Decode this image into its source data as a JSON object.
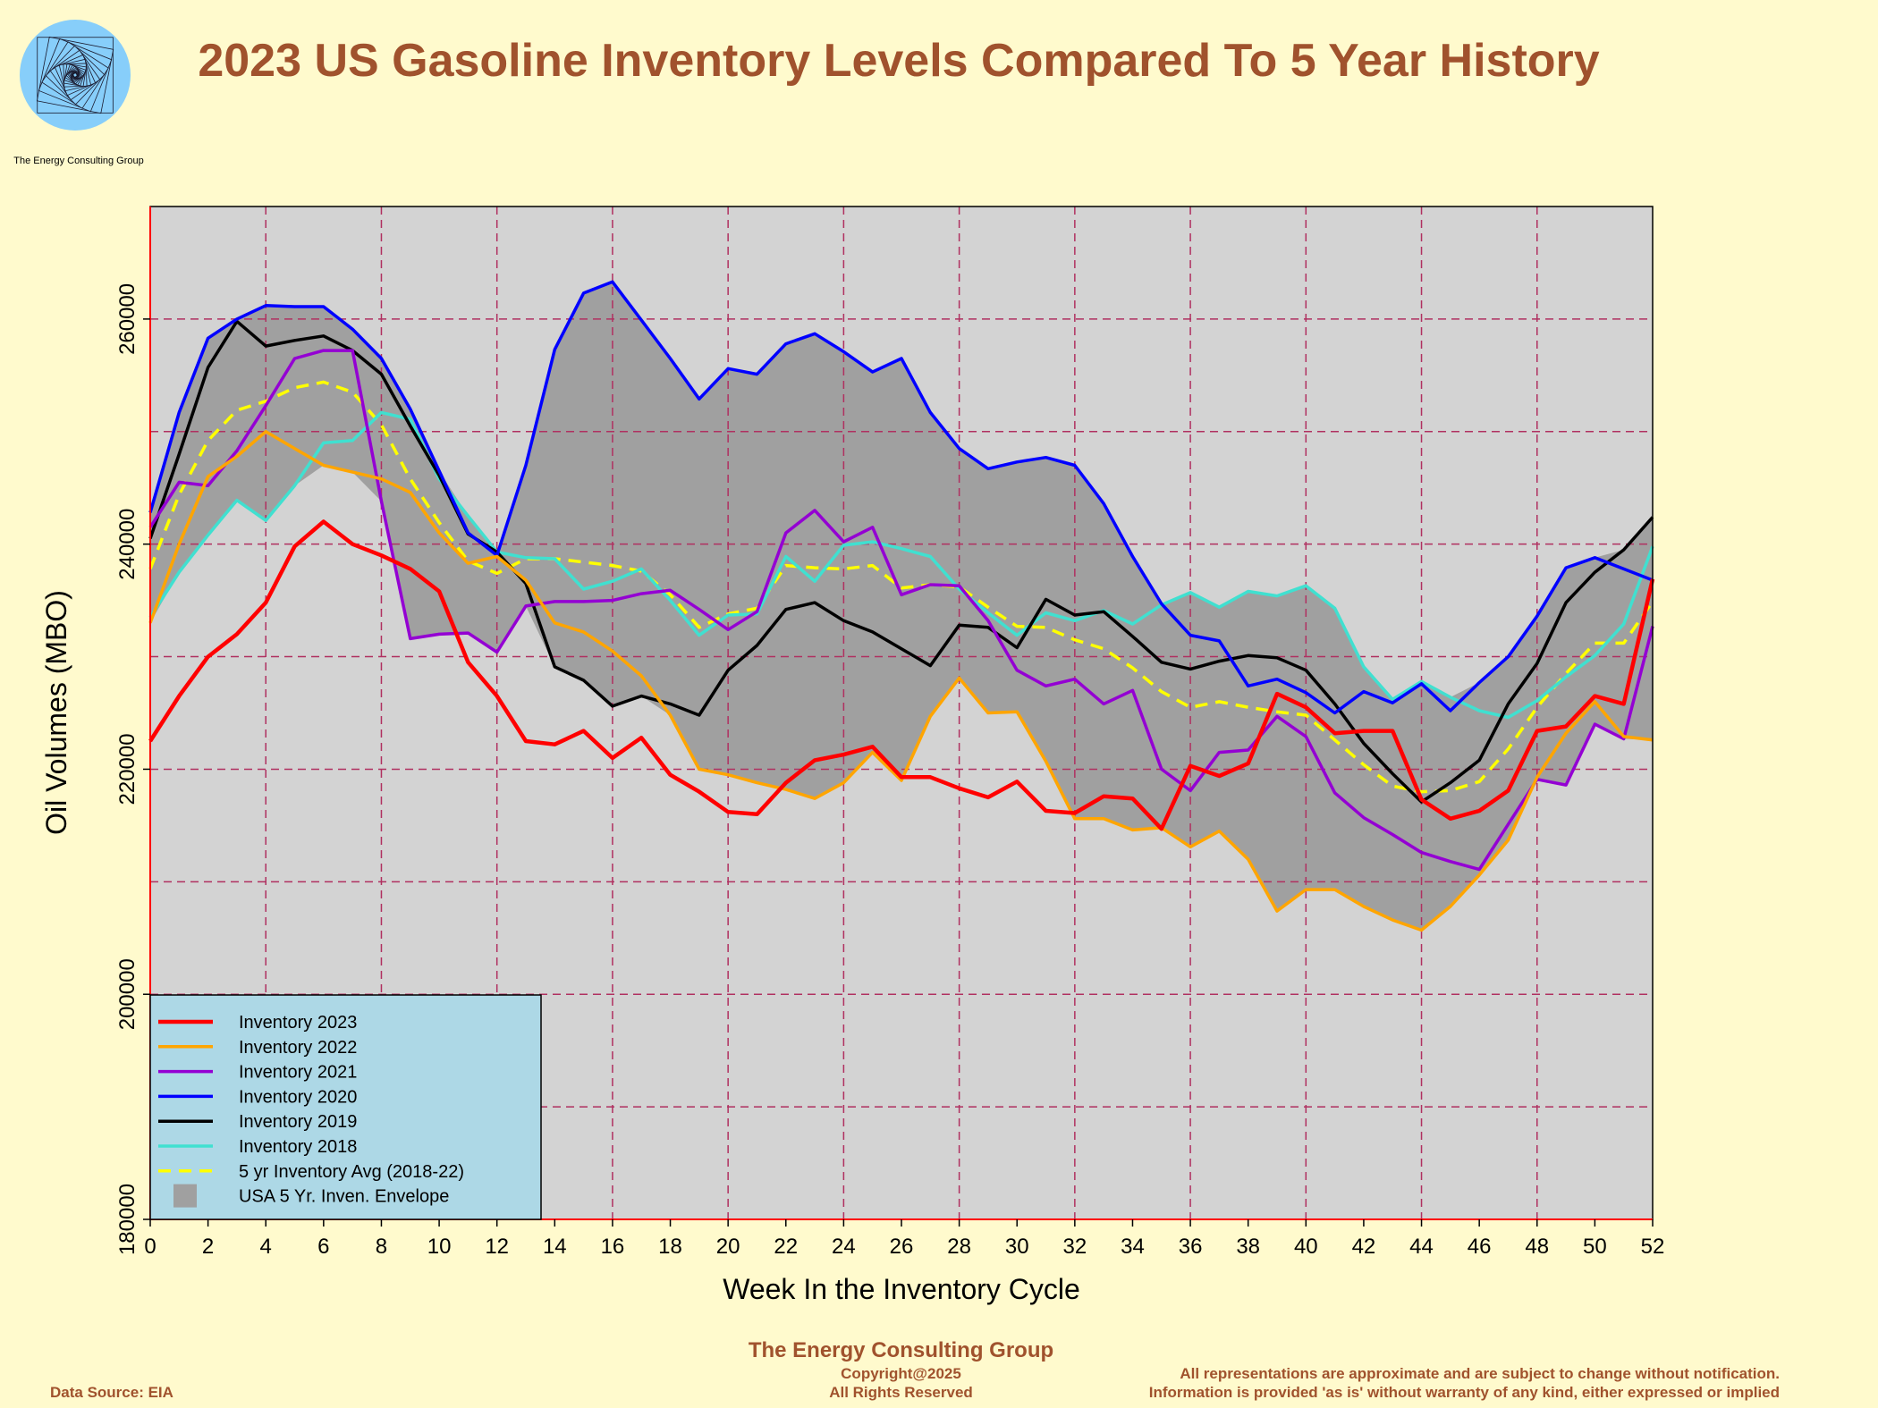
{
  "header": {
    "title": "2023 US Gasoline Inventory Levels Compared To 5 Year History",
    "logo_caption": "The Energy Consulting Group"
  },
  "footer": {
    "organization": "The Energy Consulting Group",
    "copyright": "Copyright@2025",
    "rights": "All Rights Reserved",
    "source": "Data Source: EIA",
    "disclaimer_1": "All representations are approximate and are subject to change without notification.",
    "disclaimer_2": "Information is provided 'as is' without warranty of any kind, either expressed or implied"
  },
  "colors": {
    "page_background": "#fffacd",
    "plot_background": "#d3d3d3",
    "envelope": "#a0a0a0",
    "grid": "#b03060",
    "legend_background": "#add8e6",
    "title": "#a0522d",
    "axis_line": "#ff0000"
  },
  "chart_data": {
    "type": "line",
    "title": "2023 US Gasoline Inventory Levels Compared To 5 Year History",
    "xlabel": "Week In the Inventory Cycle",
    "ylabel": "Oil Volumes (MBO)",
    "xlim": [
      0,
      52
    ],
    "ylim": [
      180000,
      270000
    ],
    "x_ticks": [
      0,
      2,
      4,
      6,
      8,
      10,
      12,
      14,
      16,
      18,
      20,
      22,
      24,
      26,
      28,
      30,
      32,
      34,
      36,
      38,
      40,
      42,
      44,
      46,
      48,
      50,
      52
    ],
    "y_ticks": [
      180000,
      200000,
      220000,
      240000,
      260000
    ],
    "grid": true,
    "legend_position": "bottom-left",
    "x": [
      0,
      1,
      2,
      3,
      4,
      5,
      6,
      7,
      8,
      9,
      10,
      11,
      12,
      13,
      14,
      15,
      16,
      17,
      18,
      19,
      20,
      21,
      22,
      23,
      24,
      25,
      26,
      27,
      28,
      29,
      30,
      31,
      32,
      33,
      34,
      35,
      36,
      37,
      38,
      39,
      40,
      41,
      42,
      43,
      44,
      45,
      46,
      47,
      48,
      49,
      50,
      51,
      52
    ],
    "series": [
      {
        "name": "Inventory 2023",
        "color": "#ff0000",
        "width": 4.5,
        "dash": "",
        "values": [
          222500,
          226500,
          230000,
          232000,
          234800,
          239800,
          242000,
          240000,
          239000,
          237800,
          235800,
          229500,
          226500,
          222500,
          222200,
          223400,
          221000,
          222800,
          219500,
          218000,
          216200,
          216000,
          218800,
          220800,
          221300,
          222000,
          219300,
          219300,
          218300,
          217500,
          218900,
          216300,
          216100,
          217600,
          217400,
          214700,
          220300,
          219400,
          220500,
          226700,
          225500,
          223200,
          223400,
          223400,
          217300,
          215600,
          216300,
          218100,
          223400,
          223800,
          226500,
          225800,
          236900
        ]
      },
      {
        "name": "Inventory 2022",
        "color": "#ffa500",
        "width": 3.5,
        "dash": "",
        "values": [
          233000,
          240000,
          246000,
          247800,
          250000,
          248500,
          247000,
          246400,
          245800,
          244600,
          241000,
          238300,
          238900,
          236800,
          233000,
          232200,
          230500,
          228300,
          224800,
          220000,
          219500,
          218800,
          218200,
          217400,
          218800,
          221500,
          219000,
          224700,
          228100,
          225000,
          225100,
          220700,
          215600,
          215600,
          214600,
          214800,
          213100,
          214500,
          212000,
          207400,
          209300,
          209300,
          207800,
          206600,
          205700,
          207800,
          210600,
          213700,
          219300,
          223200,
          226000,
          222900,
          222600
        ]
      },
      {
        "name": "Inventory 2021",
        "color": "#9400d3",
        "width": 3.5,
        "dash": "",
        "values": [
          241500,
          245500,
          245200,
          248300,
          252300,
          256500,
          257200,
          257200,
          243800,
          231600,
          232000,
          232100,
          230400,
          234500,
          234900,
          234900,
          235000,
          235600,
          235900,
          234200,
          232400,
          234000,
          241000,
          243000,
          240200,
          241500,
          235500,
          236400,
          236300,
          233200,
          228800,
          227400,
          228000,
          225800,
          227000,
          220000,
          218100,
          221500,
          221700,
          224700,
          222900,
          217900,
          215700,
          214200,
          212600,
          211800,
          211100,
          215100,
          219100,
          218600,
          224000,
          222700,
          232700
        ]
      },
      {
        "name": "Inventory 2020",
        "color": "#0000ff",
        "width": 3.5,
        "dash": "",
        "values": [
          242800,
          251700,
          258300,
          260000,
          261200,
          261100,
          261100,
          259100,
          256500,
          252000,
          246500,
          241000,
          239000,
          247000,
          257300,
          262300,
          263300,
          259900,
          256500,
          252900,
          255600,
          255100,
          257800,
          258700,
          257100,
          255300,
          256500,
          251700,
          248500,
          246700,
          247300,
          247700,
          247000,
          243600,
          238900,
          234700,
          231900,
          231400,
          227400,
          228000,
          226800,
          225000,
          226900,
          225900,
          227600,
          225200,
          227700,
          230000,
          233600,
          237900,
          238800,
          237800,
          236800
        ]
      },
      {
        "name": "Inventory 2019",
        "color": "#000000",
        "width": 3.5,
        "dash": "",
        "values": [
          240500,
          248000,
          255700,
          259800,
          257600,
          258100,
          258500,
          257200,
          255100,
          250500,
          246100,
          240900,
          239300,
          236500,
          229100,
          227900,
          225600,
          226500,
          225800,
          224800,
          228800,
          231000,
          234200,
          234800,
          233200,
          232200,
          230700,
          229200,
          232800,
          232600,
          230800,
          235100,
          233700,
          234000,
          231800,
          229500,
          228900,
          229600,
          230100,
          229900,
          228800,
          225800,
          222300,
          219600,
          217100,
          218800,
          220800,
          225800,
          229400,
          234800,
          237500,
          239500,
          242400
        ]
      },
      {
        "name": "Inventory 2018",
        "color": "#40e0d0",
        "width": 3.5,
        "dash": "",
        "values": [
          233500,
          237500,
          240800,
          243900,
          242100,
          245200,
          249000,
          249200,
          251700,
          251100,
          245800,
          242500,
          239300,
          238800,
          238700,
          236000,
          236700,
          237800,
          235000,
          231900,
          233700,
          233800,
          238900,
          236700,
          239900,
          240200,
          239600,
          238900,
          236000,
          233900,
          231900,
          233900,
          233200,
          234100,
          232900,
          234600,
          235700,
          234400,
          235800,
          235400,
          236300,
          234300,
          229100,
          226200,
          227800,
          226400,
          225200,
          224600,
          226100,
          228200,
          230100,
          232900,
          239800
        ]
      },
      {
        "name": "5 yr Inventory Avg (2018-22)",
        "color": "#ffff00",
        "width": 3.5,
        "dash": "14,9",
        "values": [
          237800,
          244400,
          249200,
          251900,
          252700,
          253900,
          254400,
          253500,
          250600,
          245800,
          241900,
          238500,
          237400,
          238700,
          238700,
          238400,
          238100,
          237600,
          235500,
          232600,
          233800,
          234300,
          238100,
          237900,
          237800,
          238100,
          236100,
          236400,
          236200,
          234400,
          232700,
          232600,
          231500,
          230700,
          229000,
          226900,
          225500,
          226000,
          225500,
          225100,
          224800,
          222600,
          220400,
          218500,
          218000,
          218100,
          218900,
          221800,
          225500,
          228500,
          231200,
          231200,
          234900
        ]
      }
    ],
    "envelope": {
      "name": "USA 5 Yr. Inven. Envelope",
      "color": "#a0a0a0"
    }
  }
}
